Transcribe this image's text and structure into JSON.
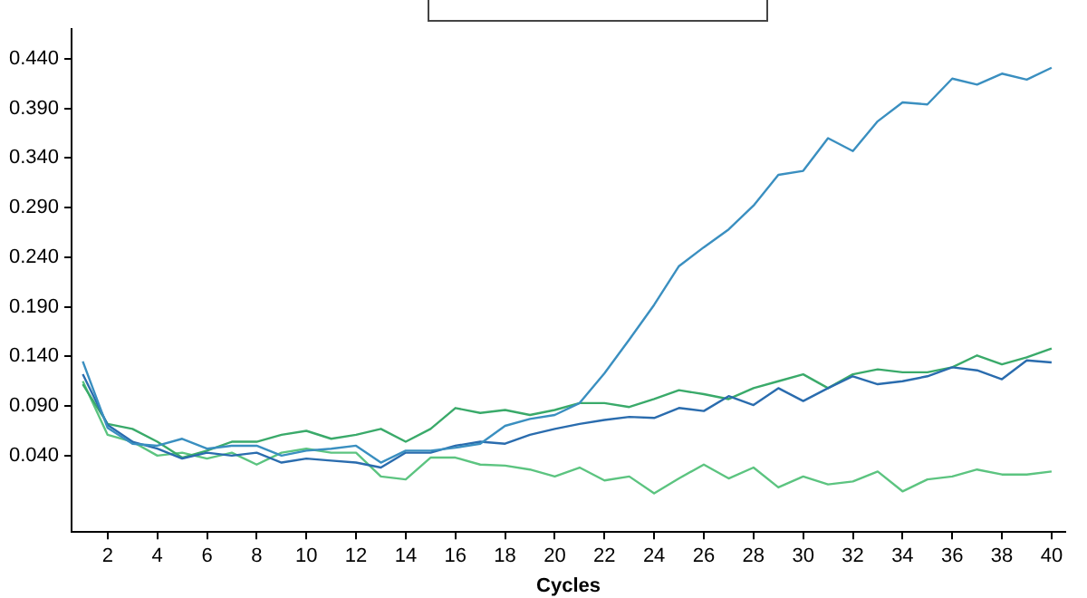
{
  "chart_data": {
    "type": "line",
    "xlabel": "Cycles",
    "x": [
      1,
      2,
      3,
      4,
      5,
      6,
      7,
      8,
      9,
      10,
      11,
      12,
      13,
      14,
      15,
      16,
      17,
      18,
      19,
      20,
      21,
      22,
      23,
      24,
      25,
      26,
      27,
      28,
      29,
      30,
      31,
      32,
      33,
      34,
      35,
      36,
      37,
      38,
      39,
      40
    ],
    "series": [
      {
        "color": "#3a8fc0",
        "values": [
          0.135,
          0.068,
          0.052,
          0.05,
          0.057,
          0.047,
          0.05,
          0.05,
          0.04,
          0.045,
          0.047,
          0.05,
          0.033,
          0.045,
          0.045,
          0.048,
          0.052,
          0.07,
          0.077,
          0.081,
          0.093,
          0.123,
          0.157,
          0.192,
          0.231,
          0.25,
          0.268,
          0.292,
          0.323,
          0.327,
          0.36,
          0.347,
          0.377,
          0.396,
          0.394,
          0.42,
          0.414,
          0.425,
          0.419,
          0.431
        ]
      },
      {
        "color": "#2a6cae",
        "values": [
          0.122,
          0.071,
          0.054,
          0.047,
          0.037,
          0.043,
          0.04,
          0.043,
          0.033,
          0.037,
          0.035,
          0.033,
          0.028,
          0.043,
          0.043,
          0.05,
          0.054,
          0.052,
          0.061,
          0.067,
          0.072,
          0.076,
          0.079,
          0.078,
          0.088,
          0.085,
          0.1,
          0.091,
          0.108,
          0.095,
          0.108,
          0.12,
          0.112,
          0.115,
          0.12,
          0.129,
          0.126,
          0.117,
          0.136,
          0.134
        ]
      },
      {
        "color": "#3aaa6a",
        "values": [
          0.112,
          0.072,
          0.067,
          0.054,
          0.038,
          0.045,
          0.054,
          0.054,
          0.061,
          0.065,
          0.057,
          0.061,
          0.067,
          0.054,
          0.067,
          0.088,
          0.083,
          0.086,
          0.081,
          0.086,
          0.093,
          0.093,
          0.089,
          0.097,
          0.106,
          0.102,
          0.097,
          0.108,
          0.115,
          0.122,
          0.108,
          0.122,
          0.127,
          0.124,
          0.124,
          0.129,
          0.141,
          0.132,
          0.139,
          0.148
        ]
      },
      {
        "color": "#5cc480",
        "values": [
          0.115,
          0.061,
          0.054,
          0.04,
          0.043,
          0.037,
          0.043,
          0.031,
          0.043,
          0.047,
          0.043,
          0.043,
          0.019,
          0.016,
          0.038,
          0.038,
          0.031,
          0.03,
          0.026,
          0.019,
          0.028,
          0.015,
          0.019,
          0.002,
          0.017,
          0.031,
          0.017,
          0.028,
          0.008,
          0.019,
          0.011,
          0.014,
          0.024,
          0.004,
          0.016,
          0.019,
          0.026,
          0.021,
          0.021,
          0.024
        ]
      }
    ],
    "xlim": [
      0.55,
      40.55
    ],
    "xticks": [
      2,
      4,
      6,
      8,
      10,
      12,
      14,
      16,
      18,
      20,
      22,
      24,
      26,
      28,
      30,
      32,
      34,
      36,
      38,
      40
    ],
    "ylim": [
      -0.037,
      0.47
    ],
    "yticks": [
      {
        "value": 0.04,
        "label": "0.040"
      },
      {
        "value": 0.09,
        "label": "0.090"
      },
      {
        "value": 0.14,
        "label": "0.140"
      },
      {
        "value": 0.19,
        "label": "0.190"
      },
      {
        "value": 0.24,
        "label": "0.240"
      },
      {
        "value": 0.29,
        "label": "0.290"
      },
      {
        "value": 0.34,
        "label": "0.340"
      },
      {
        "value": 0.39,
        "label": "0.390"
      },
      {
        "value": 0.44,
        "label": "0.440"
      }
    ],
    "grid": false,
    "legend": false,
    "marker": "none",
    "line_style": "solid"
  }
}
